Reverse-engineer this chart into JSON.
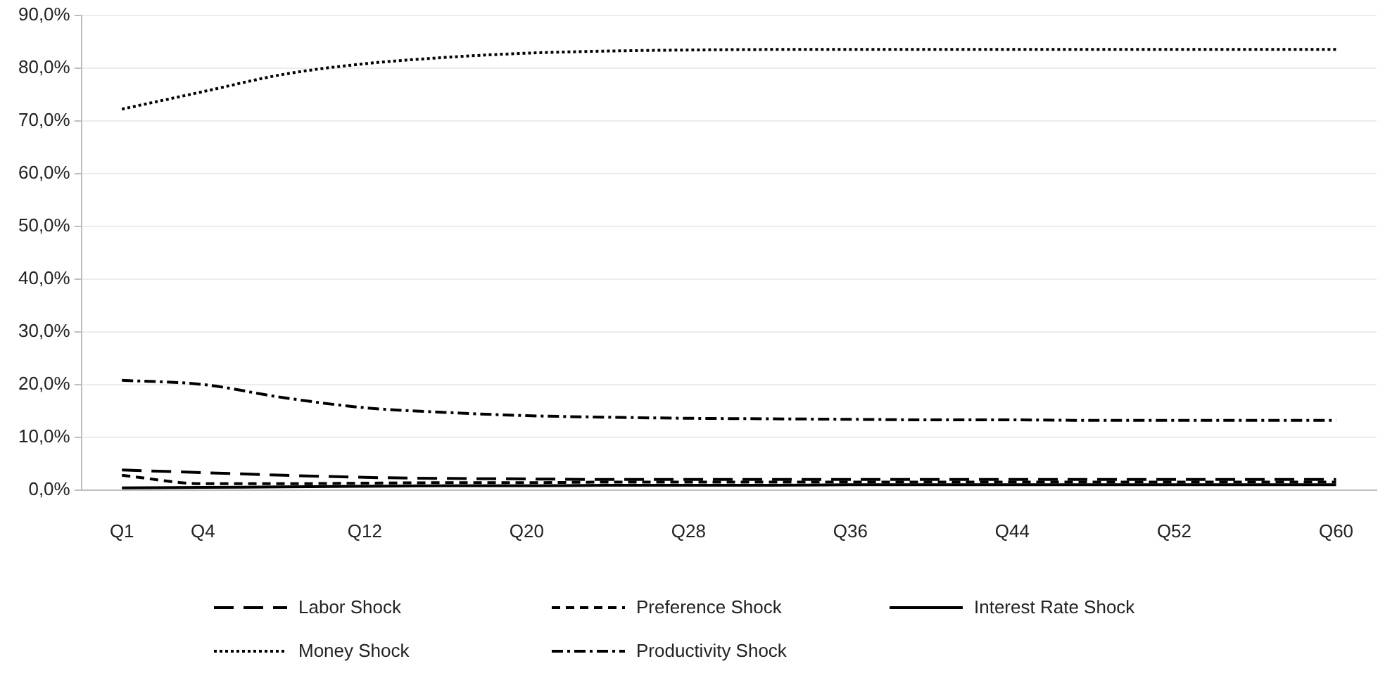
{
  "chart_data": {
    "type": "line",
    "categories": [
      "Q1",
      "Q4",
      null,
      "Q12",
      null,
      "Q20",
      null,
      "Q28",
      null,
      "Q36",
      null,
      "Q44",
      null,
      "Q52",
      null,
      "Q60"
    ],
    "series": [
      {
        "name": "Labor Shock",
        "color": "#000000",
        "line_style": "longdash",
        "values": [
          3.8,
          3.3,
          2.8,
          2.4,
          2.2,
          2.1,
          2.0,
          2.0,
          2.0,
          2.0,
          2.0,
          2.0,
          2.0,
          2.0,
          2.0,
          2.0
        ]
      },
      {
        "name": "Preference Shock",
        "color": "#000000",
        "line_style": "dashed",
        "values": [
          2.8,
          1.2,
          1.2,
          1.3,
          1.4,
          1.4,
          1.5,
          1.5,
          1.5,
          1.5,
          1.5,
          1.5,
          1.5,
          1.5,
          1.5,
          1.5
        ]
      },
      {
        "name": "Interest Rate Shock",
        "color": "#000000",
        "line_style": "solid",
        "values": [
          0.4,
          0.5,
          0.6,
          0.7,
          0.8,
          0.8,
          0.9,
          0.9,
          0.9,
          1.0,
          1.0,
          1.0,
          1.0,
          1.0,
          1.0,
          1.0
        ]
      },
      {
        "name": "Money Shock",
        "color": "#000000",
        "line_style": "dotted",
        "values": [
          72.2,
          75.5,
          78.8,
          80.8,
          82.0,
          82.8,
          83.2,
          83.4,
          83.5,
          83.5,
          83.5,
          83.5,
          83.5,
          83.5,
          83.5,
          83.5
        ]
      },
      {
        "name": "Productivity Shock",
        "color": "#000000",
        "line_style": "dashdot",
        "values": [
          20.8,
          20.0,
          17.5,
          15.6,
          14.7,
          14.1,
          13.8,
          13.6,
          13.5,
          13.4,
          13.3,
          13.3,
          13.2,
          13.2,
          13.2,
          13.2
        ]
      }
    ],
    "ylim": [
      0,
      90
    ],
    "yticks": [
      {
        "value": 0,
        "label": "0,0%"
      },
      {
        "value": 10,
        "label": "10,0%"
      },
      {
        "value": 20,
        "label": "20,0%"
      },
      {
        "value": 30,
        "label": "30,0%"
      },
      {
        "value": 40,
        "label": "40,0%"
      },
      {
        "value": 50,
        "label": "50,0%"
      },
      {
        "value": 60,
        "label": "60,0%"
      },
      {
        "value": 70,
        "label": "70,0%"
      },
      {
        "value": 80,
        "label": "80,0%"
      },
      {
        "value": 90,
        "label": "90,0%"
      }
    ],
    "grid": "y",
    "legend": "bottom",
    "marker": "none"
  }
}
